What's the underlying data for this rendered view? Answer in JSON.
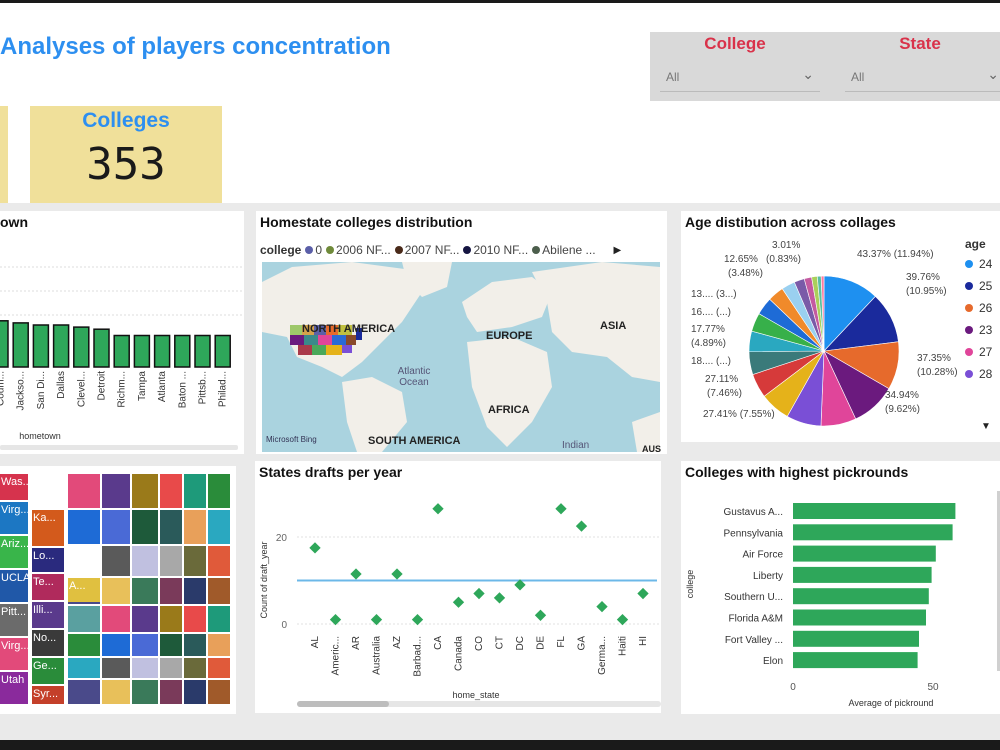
{
  "title": "Analyses of players concentration",
  "slicers": [
    {
      "title": "College",
      "value": "All"
    },
    {
      "title": "State",
      "value": "All"
    }
  ],
  "kpi": {
    "label": "Colleges",
    "value": "353"
  },
  "hometown_chart": {
    "title_fragment": "own",
    "xlabel": "hometown",
    "categories": [
      "Coum...",
      "Jackso...",
      "San Di...",
      "Dallas",
      "Clevel...",
      "Detroit",
      "Richm...",
      "Tampa",
      "Atlanta",
      "Baton ...",
      "Pittsb...",
      "Philad..."
    ],
    "bar_color": "#2ea75a"
  },
  "map_panel": {
    "title": "Homestate colleges distribution",
    "legend_label": "college",
    "legend_items": [
      {
        "name": "0",
        "color": "#5b5fa8"
      },
      {
        "name": "2006 NF...",
        "color": "#6f8a3a"
      },
      {
        "name": "2007 NF...",
        "color": "#4a2a1a"
      },
      {
        "name": "2010 NF...",
        "color": "#151542"
      },
      {
        "name": "Abilene ...",
        "color": "#4c5e4c"
      }
    ],
    "labels": [
      "NORTH AMERICA",
      "EUROPE",
      "ASIA",
      "Atlantic Ocean",
      "AFRICA",
      "SOUTH AMERICA",
      "Indian",
      "AUS"
    ],
    "attribution": "Microsoft Bing"
  },
  "pie_panel": {
    "title": "Age distibution across collages",
    "legend_title": "age",
    "legend": [
      {
        "name": "24",
        "color": "#1e90f0"
      },
      {
        "name": "25",
        "color": "#1a2a9c"
      },
      {
        "name": "26",
        "color": "#e66a2c"
      },
      {
        "name": "23",
        "color": "#6b1a7e"
      },
      {
        "name": "27",
        "color": "#e0459a"
      },
      {
        "name": "28",
        "color": "#7a4fd6"
      }
    ],
    "labels": [
      "3.01%",
      "(0.83%)",
      "12.65%",
      "(3.48%)",
      "13.... (3...)",
      "16.... (...)",
      "17.77%",
      "(4.89%)",
      "18.... (...)",
      "27.11%",
      "(7.46%)",
      "27.41% (7.55%)",
      "43.37% (11.94%)",
      "39.76%",
      "(10.95%)",
      "37.35%",
      "(10.28%)",
      "34.94%",
      "(9.62%)"
    ]
  },
  "treemap_tiles": [
    {
      "label": "Was...",
      "color": "#d6334d"
    },
    {
      "label": "Virg...",
      "color": "#1c77c3"
    },
    {
      "label": "Ariz...",
      "color": "#39b54a"
    },
    {
      "label": "UCLA",
      "color": "#2058a8"
    },
    {
      "label": "Pitt...",
      "color": "#6b6b6b"
    },
    {
      "label": "Virg...",
      "color": "#e24a7a"
    },
    {
      "label": "Utah",
      "color": "#8a2a9c"
    },
    {
      "label": "Ka...",
      "color": "#d35a1c"
    },
    {
      "label": "Lo...",
      "color": "#2a2a7e"
    },
    {
      "label": "Te...",
      "color": "#b02a5c"
    },
    {
      "label": "Illi...",
      "color": "#5a3a8c"
    },
    {
      "label": "No...",
      "color": "#3a3a3a"
    },
    {
      "label": "Ge...",
      "color": "#2a8c3a"
    },
    {
      "label": "Syr...",
      "color": "#c4402a"
    },
    {
      "label": "A...",
      "color": "#e0c040"
    }
  ],
  "scatter_panel": {
    "title": "States drafts per year",
    "xlabel": "home_state",
    "ylabel": "Count of draft_year",
    "y_ticks": [
      "0",
      "20"
    ],
    "categories": [
      "AL",
      "Americ...",
      "AR",
      "Australia",
      "AZ",
      "Barbad...",
      "CA",
      "Canada",
      "CO",
      "CT",
      "DC",
      "DE",
      "FL",
      "GA",
      "Germa...",
      "Haiti",
      "HI"
    ],
    "reference_line": 10
  },
  "bar_panel": {
    "title": "Colleges with highest pickrounds",
    "xlabel": "Average of pickround",
    "ylabel": "college",
    "x_ticks": [
      "0",
      "50"
    ],
    "categories": [
      "Gustavus A...",
      "Pennsylvania",
      "Air Force",
      "Liberty",
      "Southern U...",
      "Florida A&M",
      "Fort Valley ...",
      "Elon"
    ],
    "bar_color": "#2ea75a"
  },
  "chart_data": [
    {
      "type": "bar",
      "title": "",
      "xlabel": "hometown",
      "categories": [
        "Coum...",
        "Jackso...",
        "San Di...",
        "Dallas",
        "Clevel...",
        "Detroit",
        "Richm...",
        "Tampa",
        "Atlanta",
        "Baton ...",
        "Pittsb...",
        "Philad..."
      ],
      "values": [
        11,
        10.5,
        10,
        10,
        9.5,
        9,
        7.5,
        7.5,
        7.5,
        7.5,
        7.5,
        7.5
      ]
    },
    {
      "type": "pie",
      "title": "Age distibution across collages",
      "legend": [
        "24",
        "25",
        "26",
        "23",
        "27",
        "28"
      ],
      "values": [
        11.94,
        10.95,
        10.28,
        9.62,
        7.55,
        7.46,
        6.5,
        5.2,
        4.89,
        4.4,
        4.0,
        3.8,
        3.48,
        2.9,
        2.2,
        1.6,
        1.2,
        0.83,
        0.6
      ],
      "colors": [
        "#1e90f0",
        "#1a2a9c",
        "#e66a2c",
        "#6b1a7e",
        "#e0459a",
        "#7a4fd6",
        "#e5b21a",
        "#d63a3a",
        "#3a7a7a",
        "#2aa8c0",
        "#37b04a",
        "#1e6bd6",
        "#f08a2a",
        "#9ad0f0",
        "#7a5aa8",
        "#c45aa0",
        "#aad05a",
        "#5ac0a0",
        "#ff7aa0"
      ]
    },
    {
      "type": "scatter",
      "title": "States drafts per year",
      "xlabel": "home_state",
      "ylabel": "Count of draft_year",
      "categories": [
        "AL",
        "Americ...",
        "AR",
        "Australia",
        "AZ",
        "Barbad...",
        "CA",
        "Canada",
        "CO",
        "CT",
        "DC",
        "DE",
        "FL",
        "GA",
        "Germa...",
        "Haiti",
        "HI"
      ],
      "values": [
        17.5,
        1,
        11.5,
        1,
        11.5,
        1,
        26.5,
        5,
        7,
        6,
        9,
        2,
        26.5,
        22.5,
        4,
        1,
        7
      ],
      "ylim": [
        0,
        32
      ]
    },
    {
      "type": "bar",
      "orientation": "horizontal",
      "title": "Colleges with highest pickrounds",
      "xlabel": "Average of pickround",
      "ylabel": "college",
      "categories": [
        "Gustavus A...",
        "Pennsylvania",
        "Air Force",
        "Liberty",
        "Southern U...",
        "Florida A&M",
        "Fort Valley ...",
        "Elon"
      ],
      "values": [
        58,
        57,
        51,
        49.5,
        48.5,
        47.5,
        45,
        44.5
      ],
      "xlim": [
        0,
        60
      ]
    }
  ]
}
